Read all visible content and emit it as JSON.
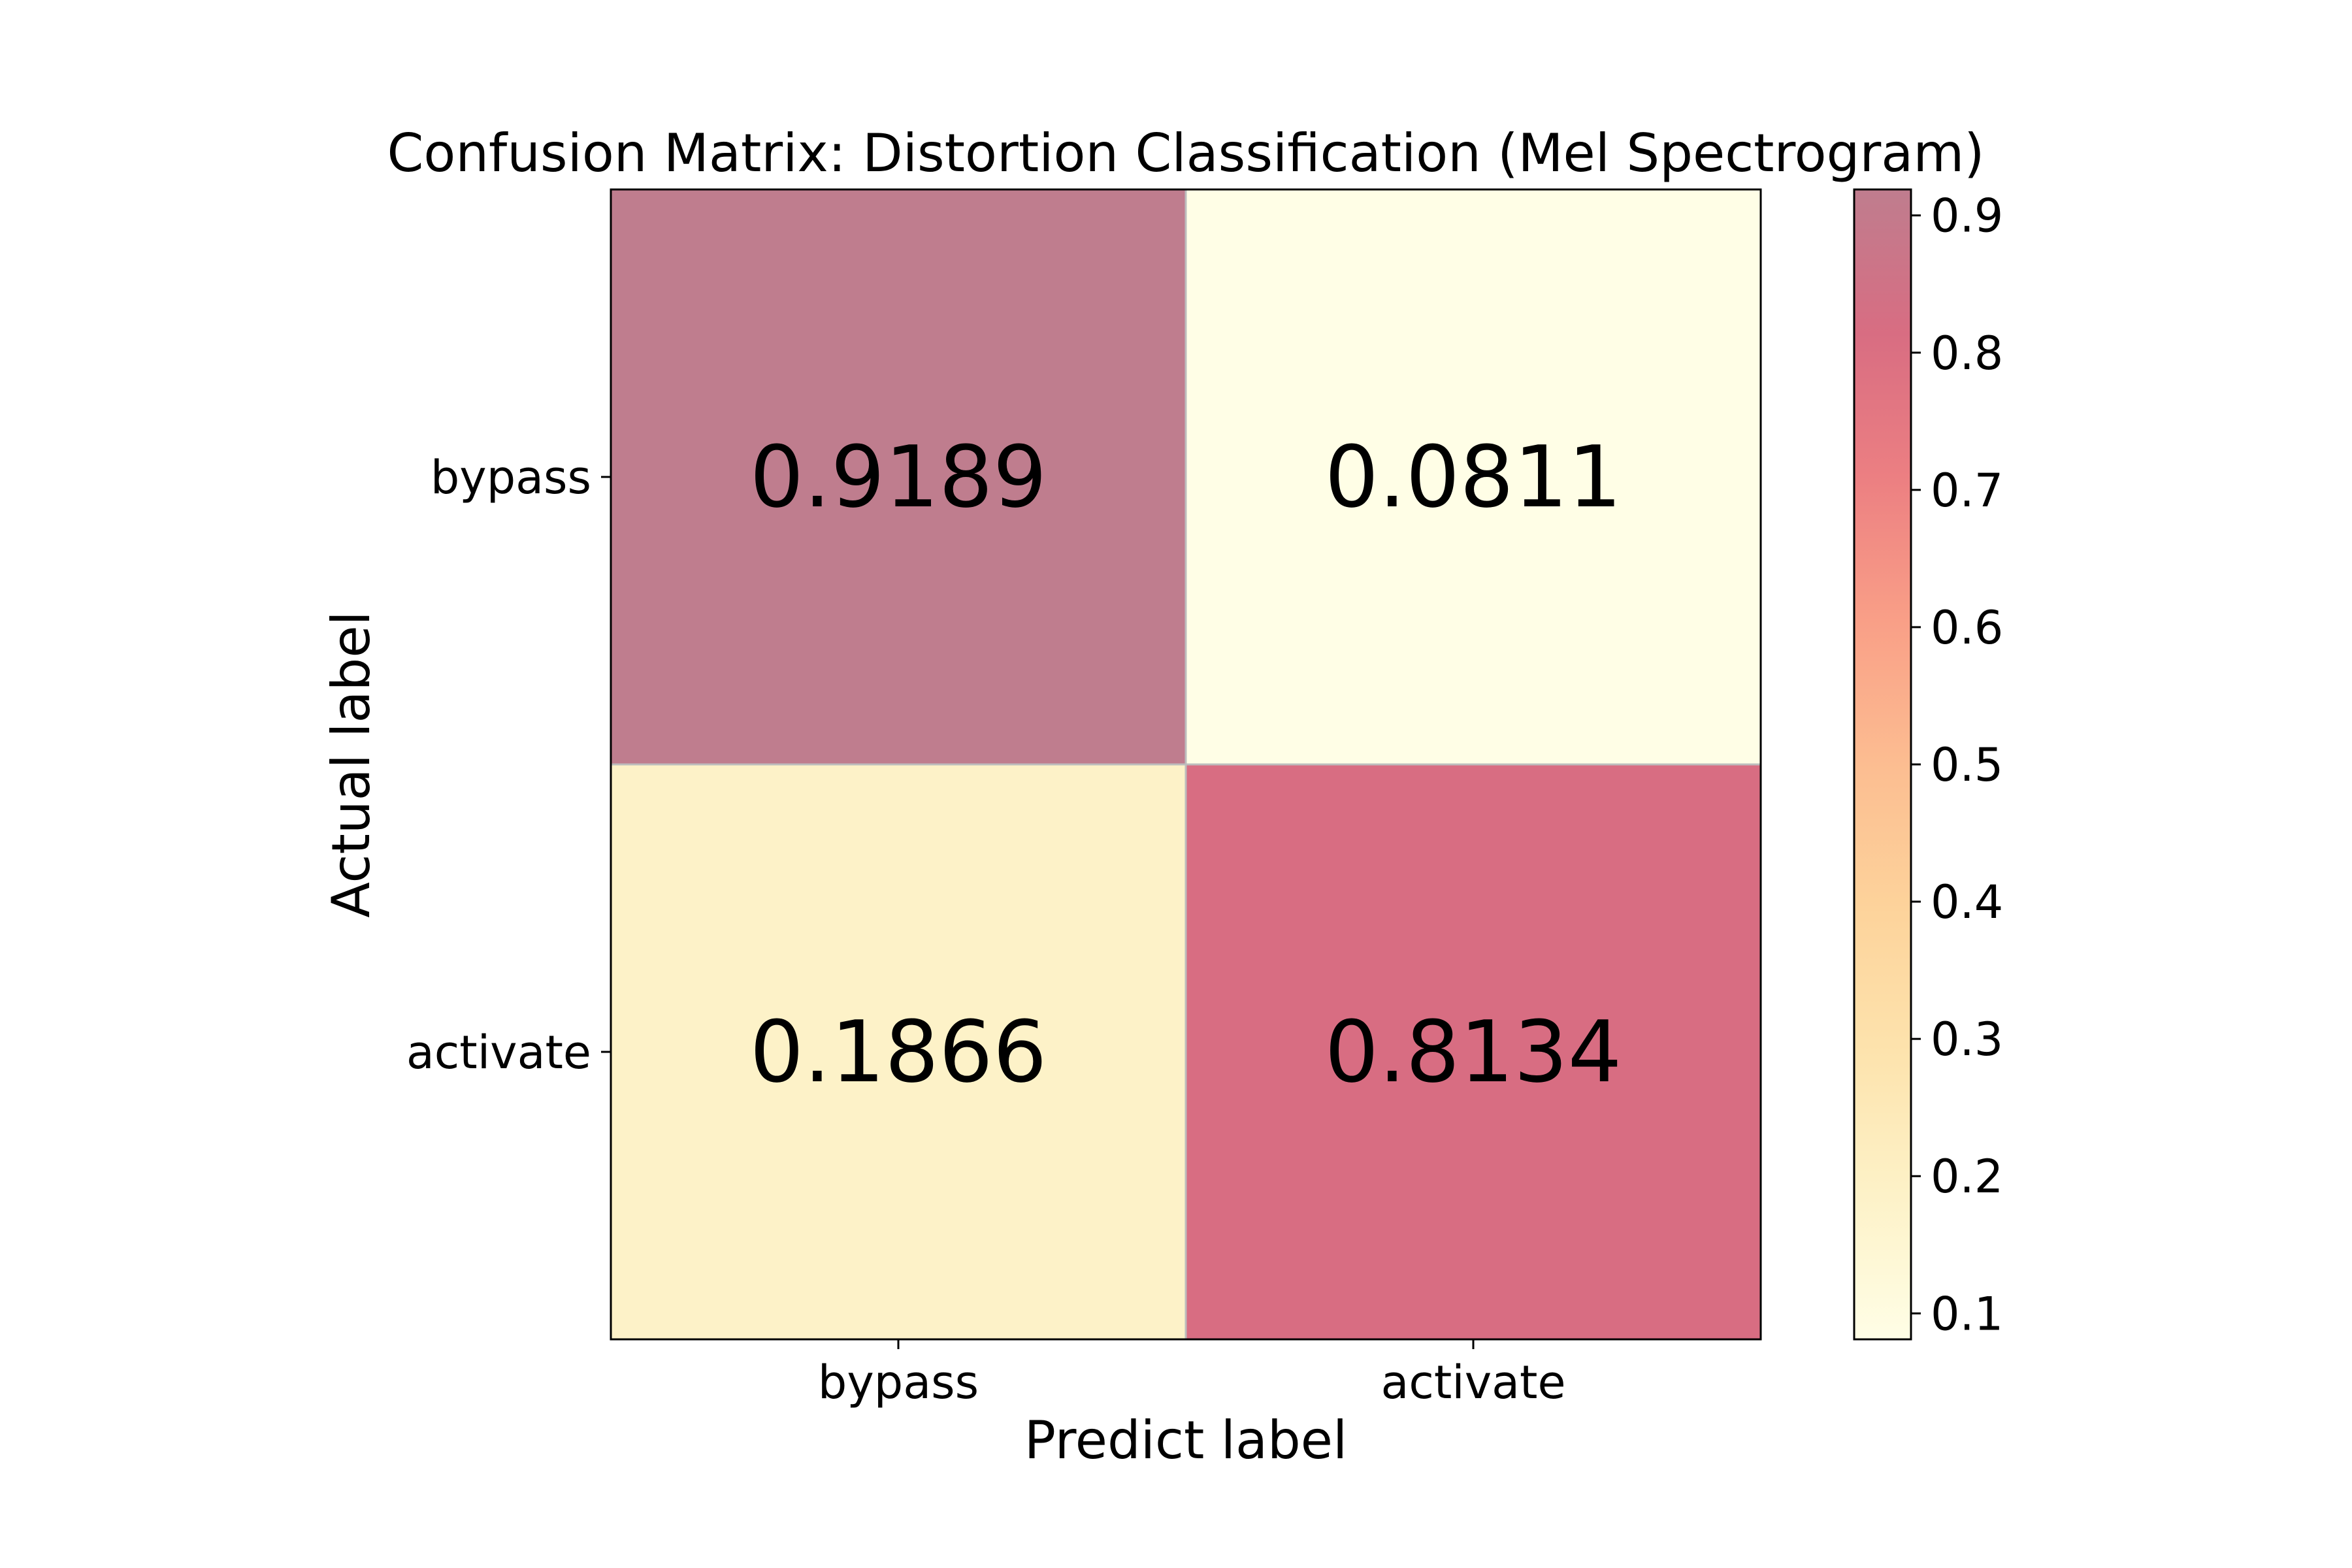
{
  "chart_data": {
    "type": "heatmap",
    "title": "Confusion Matrix: Distortion Classification (Mel Spectrogram)",
    "xlabel": "Predict label",
    "ylabel": "Actual label",
    "x_categories": [
      "bypass",
      "activate"
    ],
    "y_categories": [
      "bypass",
      "activate"
    ],
    "matrix": [
      [
        0.9189,
        0.0811
      ],
      [
        0.1866,
        0.8134
      ]
    ],
    "cell_labels": [
      [
        "0.9189",
        "0.0811"
      ],
      [
        "0.1866",
        "0.8134"
      ]
    ],
    "colorbar": {
      "range": [
        0.0811,
        0.9189
      ],
      "ticks": [
        0.1,
        0.2,
        0.3,
        0.4,
        0.5,
        0.6,
        0.7,
        0.8,
        0.9
      ],
      "tick_labels": [
        "0.1",
        "0.2",
        "0.3",
        "0.4",
        "0.5",
        "0.6",
        "0.7",
        "0.8",
        "0.9"
      ],
      "colormap": [
        "#fffee6",
        "#fdf2c8",
        "#fde3ad",
        "#fdd39b",
        "#fcbd91",
        "#f99f87",
        "#ec7f82",
        "#d86d82",
        "#bf7d8e"
      ]
    },
    "grid": false
  }
}
